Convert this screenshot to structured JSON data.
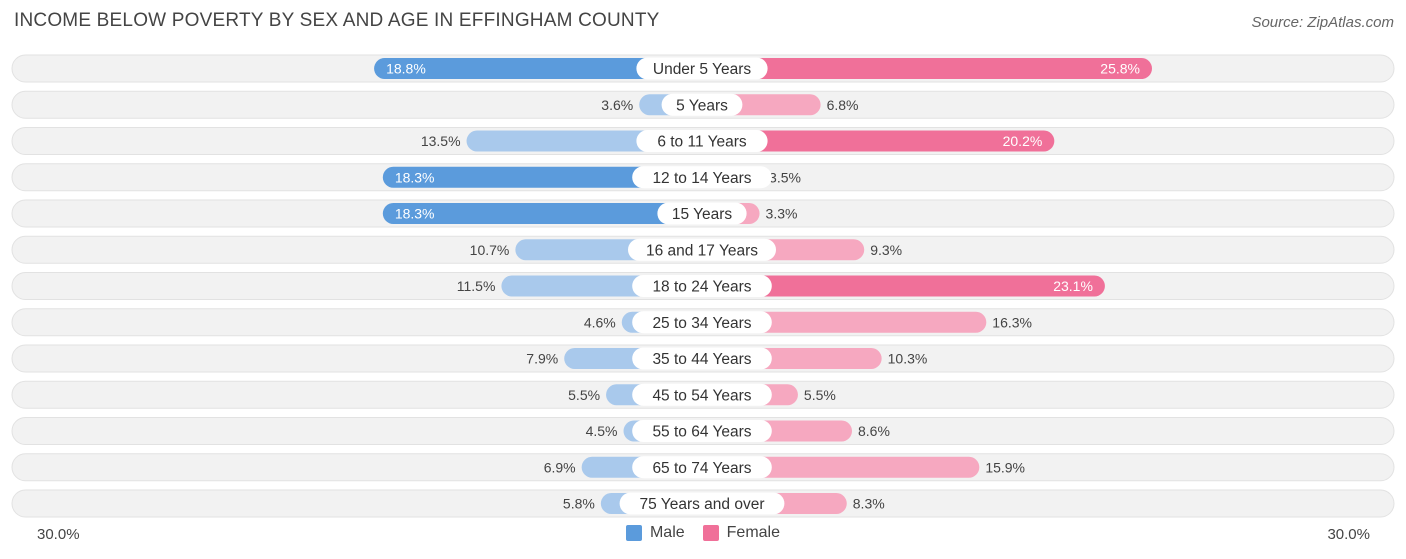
{
  "title": "INCOME BELOW POVERTY BY SEX AND AGE IN EFFINGHAM COUNTY",
  "source": "Source: ZipAtlas.com",
  "colors": {
    "male_strong": "#5b9bdc",
    "male_light": "#a9c9ec",
    "female_strong": "#f07099",
    "female_light": "#f6a8c0",
    "row_bg": "#f2f2f2",
    "row_border": "#e2e2e2"
  },
  "chart_data": {
    "type": "bar",
    "orientation": "horizontal-diverging",
    "title": "INCOME BELOW POVERTY BY SEX AND AGE IN EFFINGHAM COUNTY",
    "categories": [
      "Under 5 Years",
      "5 Years",
      "6 to 11 Years",
      "12 to 14 Years",
      "15 Years",
      "16 and 17 Years",
      "18 to 24 Years",
      "25 to 34 Years",
      "35 to 44 Years",
      "45 to 54 Years",
      "55 to 64 Years",
      "65 to 74 Years",
      "75 Years and over"
    ],
    "series": [
      {
        "name": "Male",
        "values": [
          18.8,
          3.6,
          13.5,
          18.3,
          18.3,
          10.7,
          11.5,
          4.6,
          7.9,
          5.5,
          4.5,
          6.9,
          5.8
        ]
      },
      {
        "name": "Female",
        "values": [
          25.8,
          6.8,
          20.2,
          3.5,
          3.3,
          9.3,
          23.1,
          16.3,
          10.3,
          5.5,
          8.6,
          15.9,
          8.3
        ]
      }
    ],
    "value_labels": {
      "male": [
        "18.8%",
        "3.6%",
        "13.5%",
        "18.3%",
        "18.3%",
        "10.7%",
        "11.5%",
        "4.6%",
        "7.9%",
        "5.5%",
        "4.5%",
        "6.9%",
        "5.8%"
      ],
      "female": [
        "25.8%",
        "6.8%",
        "20.2%",
        "3.5%",
        "3.3%",
        "9.3%",
        "23.1%",
        "16.3%",
        "10.3%",
        "5.5%",
        "8.6%",
        "15.9%",
        "8.3%"
      ]
    },
    "xlim": [
      -30,
      30
    ],
    "axis_min_label": "30.0%",
    "axis_max_label": "30.0%",
    "legend": [
      "Male",
      "Female"
    ],
    "legend_position": "bottom-center"
  }
}
